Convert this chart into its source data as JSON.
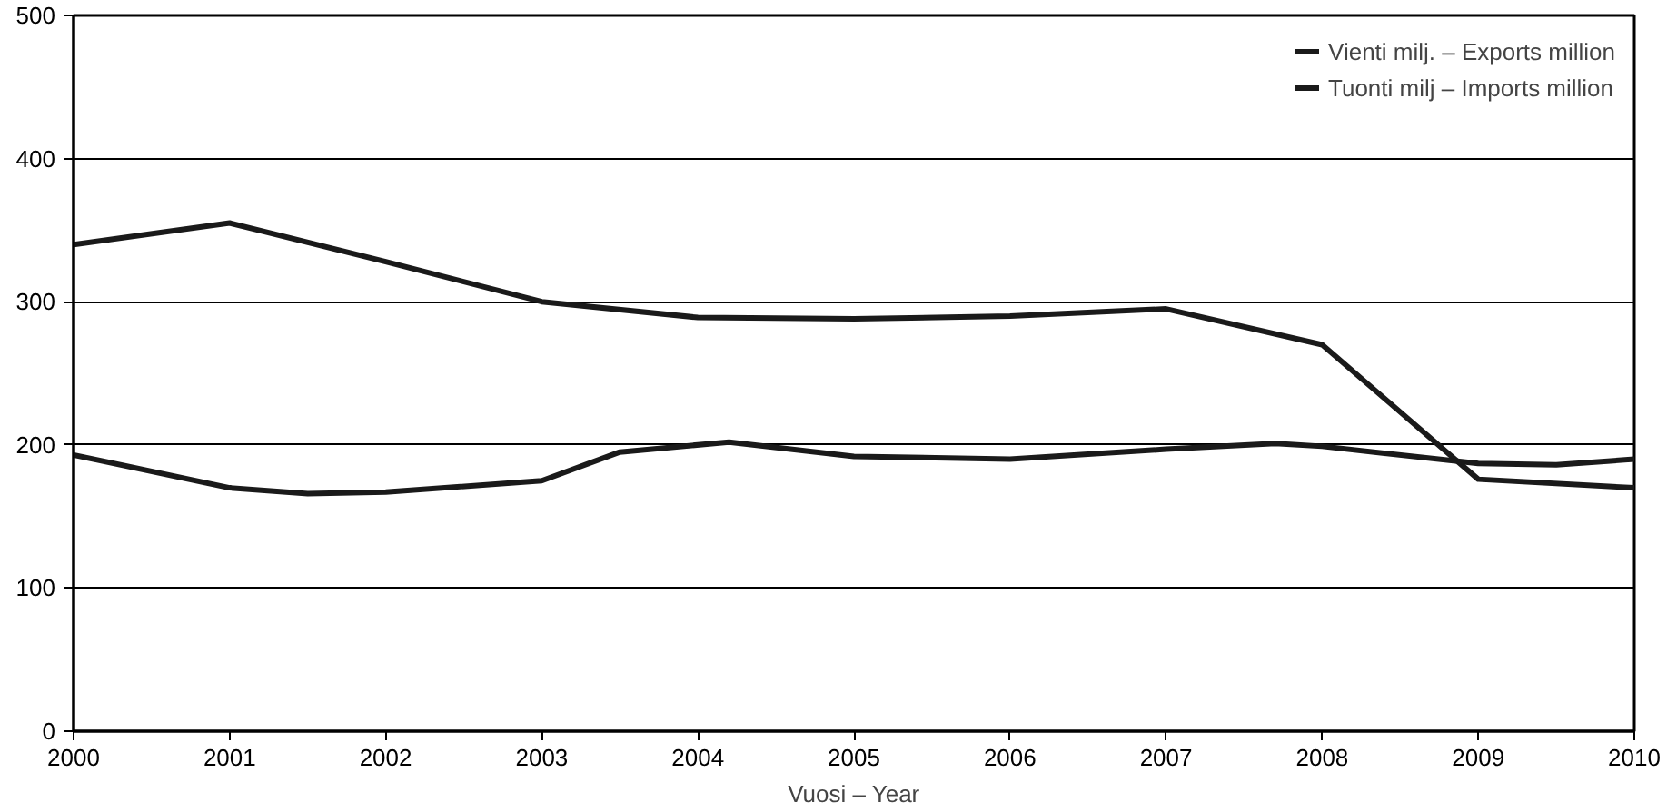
{
  "chart_data": {
    "type": "line",
    "xlabel": "Vuosi – Year",
    "xlim": [
      2000,
      2010
    ],
    "xticks": [
      2000,
      2001,
      2002,
      2003,
      2004,
      2005,
      2006,
      2007,
      2008,
      2009,
      2010
    ],
    "ylim": [
      0,
      500
    ],
    "yticks": [
      0,
      100,
      200,
      300,
      400,
      500
    ],
    "grid": "y",
    "legend": "top right",
    "series": [
      {
        "name": "Vienti milj. – Exports million",
        "color": "#1a1a1a",
        "x": [
          2000,
          2001,
          2002,
          2003,
          2004,
          2005,
          2006,
          2007,
          2008,
          2009,
          2010
        ],
        "values": [
          340,
          355,
          328,
          300,
          289,
          288,
          290,
          295,
          270,
          176,
          170
        ]
      },
      {
        "name": "Tuonti milj – Imports million",
        "color": "#1a1a1a",
        "x": [
          2000,
          2001,
          2001.5,
          2002,
          2003,
          2003.5,
          2004.2,
          2005,
          2006,
          2007,
          2007.7,
          2008,
          2009,
          2009.5,
          2010
        ],
        "values": [
          193,
          170,
          166,
          167,
          175,
          195,
          202,
          192,
          190,
          197,
          201,
          199,
          187,
          186,
          190
        ]
      }
    ]
  }
}
